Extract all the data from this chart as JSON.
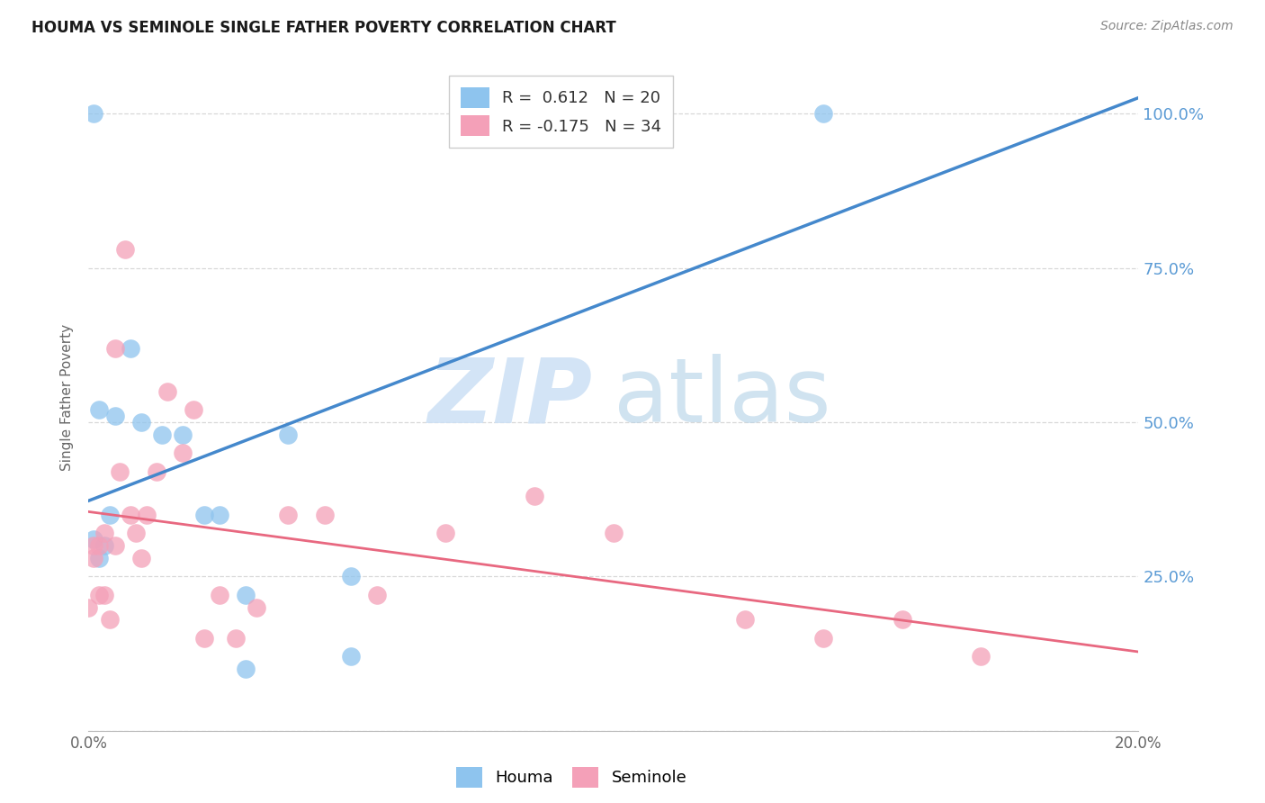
{
  "title": "HOUMA VS SEMINOLE SINGLE FATHER POVERTY CORRELATION CHART",
  "source": "Source: ZipAtlas.com",
  "ylabel": "Single Father Poverty",
  "xlim": [
    0.0,
    0.2
  ],
  "ylim": [
    0.0,
    1.08
  ],
  "xticks": [
    0.0,
    0.05,
    0.1,
    0.15,
    0.2
  ],
  "xticklabels": [
    "0.0%",
    "",
    "",
    "",
    "20.0%"
  ],
  "yticks": [
    0.0,
    0.25,
    0.5,
    0.75,
    1.0
  ],
  "yticklabels_right": [
    "",
    "25.0%",
    "50.0%",
    "75.0%",
    "100.0%"
  ],
  "houma_color": "#8EC4EE",
  "seminole_color": "#F4A0B8",
  "houma_line_color": "#4488CC",
  "seminole_line_color": "#E86880",
  "houma_R": 0.612,
  "houma_N": 20,
  "seminole_R": -0.175,
  "seminole_N": 34,
  "bg_color": "#ffffff",
  "grid_color": "#d8d8d8",
  "watermark_zip": "ZIP",
  "watermark_atlas": "atlas",
  "houma_points_x": [
    0.001,
    0.001,
    0.002,
    0.002,
    0.003,
    0.004,
    0.005,
    0.008,
    0.01,
    0.014,
    0.018,
    0.022,
    0.025,
    0.03,
    0.03,
    0.038,
    0.05,
    0.05,
    0.088,
    0.14
  ],
  "houma_points_y": [
    0.31,
    1.0,
    0.28,
    0.52,
    0.3,
    0.35,
    0.51,
    0.62,
    0.5,
    0.48,
    0.48,
    0.35,
    0.35,
    0.22,
    0.1,
    0.48,
    0.12,
    0.25,
    1.0,
    1.0
  ],
  "seminole_points_x": [
    0.0,
    0.001,
    0.001,
    0.002,
    0.002,
    0.003,
    0.003,
    0.004,
    0.005,
    0.005,
    0.006,
    0.007,
    0.008,
    0.009,
    0.01,
    0.011,
    0.013,
    0.015,
    0.018,
    0.02,
    0.022,
    0.025,
    0.028,
    0.032,
    0.038,
    0.045,
    0.055,
    0.068,
    0.085,
    0.1,
    0.125,
    0.14,
    0.155,
    0.17
  ],
  "seminole_points_y": [
    0.2,
    0.28,
    0.3,
    0.22,
    0.3,
    0.22,
    0.32,
    0.18,
    0.3,
    0.62,
    0.42,
    0.78,
    0.35,
    0.32,
    0.28,
    0.35,
    0.42,
    0.55,
    0.45,
    0.52,
    0.15,
    0.22,
    0.15,
    0.2,
    0.35,
    0.35,
    0.22,
    0.32,
    0.38,
    0.32,
    0.18,
    0.15,
    0.18,
    0.12
  ]
}
